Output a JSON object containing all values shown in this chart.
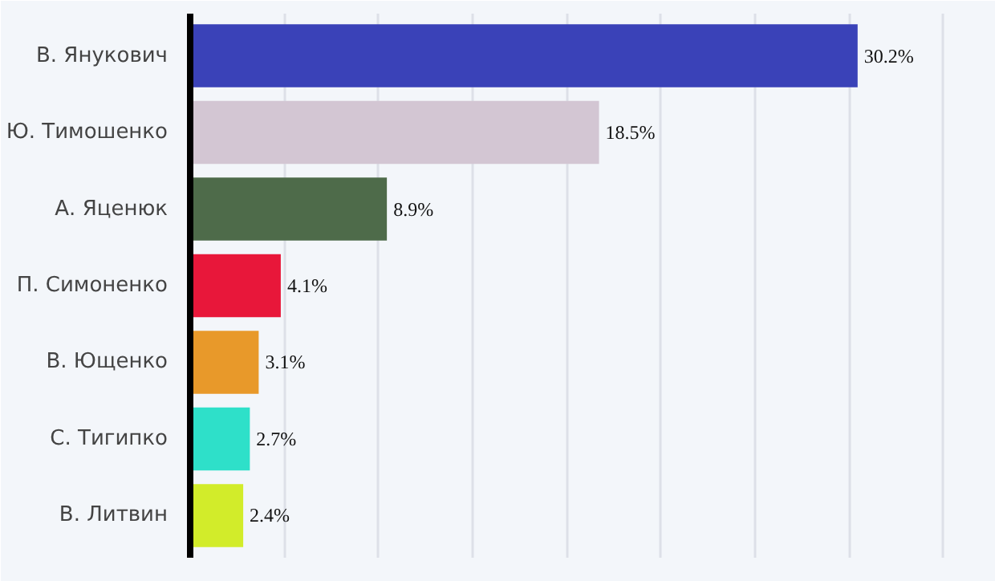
{
  "chart_data": {
    "type": "bar",
    "orientation": "horizontal",
    "categories": [
      "В. Янукович",
      "Ю. Тимошенко",
      "А. Яценюк",
      "П. Симоненко",
      "В. Ющенко",
      "С. Тигипко",
      "В. Литвин"
    ],
    "values": [
      30.2,
      18.5,
      8.9,
      4.1,
      3.1,
      2.7,
      2.4
    ],
    "colors": [
      "#3a42b8",
      "#d3c6d3",
      "#4e6b4a",
      "#e8173a",
      "#e8992a",
      "#2ee0c9",
      "#d2ec2a"
    ],
    "value_labels": [
      "30.2%",
      "18.5%",
      "8.9%",
      "4.1%",
      "3.1%",
      "2.7%",
      "2.4%"
    ],
    "xlim": [
      0,
      35
    ],
    "xticks": [
      {
        "value": 0,
        "label": null
      },
      {
        "value": 4.26,
        "label": null
      },
      {
        "value": 8.52,
        "label": null
      },
      {
        "value": 12.78,
        "label": null
      },
      {
        "value": 17.04,
        "label": null
      },
      {
        "value": 21.3,
        "label": null
      },
      {
        "value": 25.56,
        "label": null
      },
      {
        "value": 29.82,
        "label": null
      },
      {
        "value": 34.08,
        "label": null
      }
    ],
    "grid": "x",
    "tick_labels": "y"
  }
}
